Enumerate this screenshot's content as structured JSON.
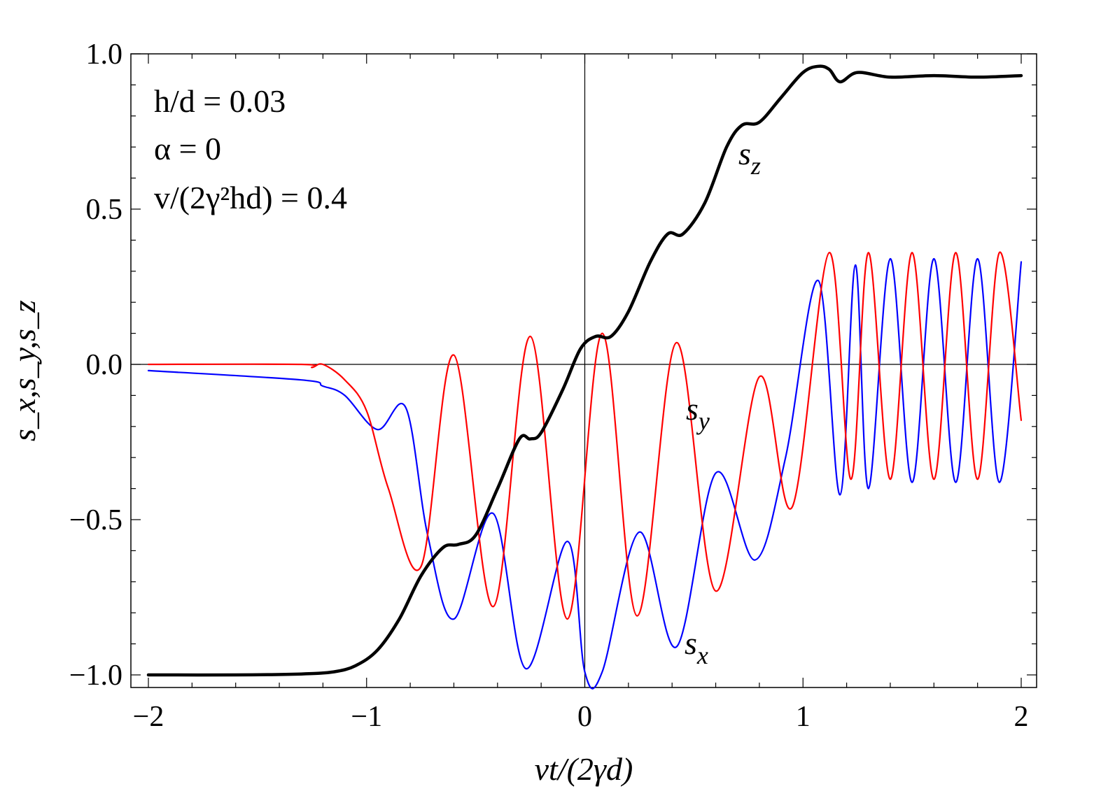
{
  "chart_data": {
    "type": "line",
    "xlabel": "vt/(2γd)",
    "ylabel": "s_x,s_y,s_z",
    "xlim": [
      -2,
      2
    ],
    "ylim": [
      -1.0,
      1.0
    ],
    "x_ticks": [
      -2,
      -1,
      0,
      1,
      2
    ],
    "x_tick_labels": [
      "−2",
      "−1",
      "0",
      "1",
      "2"
    ],
    "y_ticks": [
      -1.0,
      -0.5,
      0.0,
      0.5,
      1.0
    ],
    "y_tick_labels": [
      "−1.0",
      "−0.5",
      "0.0",
      "0.5",
      "1.0"
    ],
    "grid": false,
    "legend": "none (curves labeled inline)",
    "annotations": [
      "h/d = 0.03",
      "α = 0",
      "v/(2γ²hd) = 0.4"
    ],
    "series": [
      {
        "name": "s_z",
        "color": "#000000",
        "x": [
          -2.0,
          -1.6,
          -1.3,
          -1.15,
          -1.05,
          -0.95,
          -0.85,
          -0.75,
          -0.65,
          -0.58,
          -0.5,
          -0.4,
          -0.3,
          -0.25,
          -0.2,
          -0.1,
          -0.02,
          0.05,
          0.12,
          0.2,
          0.3,
          0.38,
          0.45,
          0.55,
          0.65,
          0.72,
          0.8,
          0.9,
          1.0,
          1.07,
          1.12,
          1.17,
          1.25,
          1.4,
          1.6,
          1.8,
          2.0
        ],
        "y": [
          -1.0,
          -1.0,
          -0.997,
          -0.99,
          -0.97,
          -0.92,
          -0.82,
          -0.68,
          -0.59,
          -0.58,
          -0.55,
          -0.4,
          -0.24,
          -0.24,
          -0.22,
          -0.08,
          0.05,
          0.09,
          0.09,
          0.17,
          0.33,
          0.42,
          0.42,
          0.52,
          0.7,
          0.77,
          0.78,
          0.86,
          0.94,
          0.96,
          0.95,
          0.91,
          0.94,
          0.925,
          0.93,
          0.925,
          0.93
        ]
      },
      {
        "name": "s_y",
        "color": "#ff0000",
        "x": [
          -2.0,
          -1.3,
          -1.25,
          -1.2,
          -1.1,
          -1.0,
          -0.9,
          -0.75,
          -0.6,
          -0.42,
          -0.25,
          -0.08,
          0.08,
          0.24,
          0.42,
          0.6,
          0.8,
          0.95,
          1.12,
          1.22,
          1.3,
          1.4,
          1.5,
          1.6,
          1.7,
          1.8,
          1.9,
          2.0
        ],
        "y": [
          0.0,
          0.0,
          -0.01,
          0.0,
          -0.05,
          -0.15,
          -0.4,
          -0.65,
          0.03,
          -0.78,
          0.09,
          -0.82,
          0.1,
          -0.81,
          0.07,
          -0.73,
          -0.04,
          -0.46,
          0.36,
          -0.37,
          0.36,
          -0.37,
          0.36,
          -0.37,
          0.36,
          -0.37,
          0.36,
          -0.18
        ]
      },
      {
        "name": "s_x",
        "color": "#0000ff",
        "x": [
          -2.0,
          -1.3,
          -1.2,
          -1.1,
          -0.95,
          -0.82,
          -0.72,
          -0.6,
          -0.42,
          -0.27,
          -0.08,
          0.0,
          0.08,
          0.25,
          0.42,
          0.6,
          0.78,
          0.92,
          1.07,
          1.17,
          1.24,
          1.3,
          1.4,
          1.5,
          1.6,
          1.7,
          1.8,
          1.9,
          2.0
        ],
        "y": [
          -0.02,
          -0.05,
          -0.07,
          -0.1,
          -0.21,
          -0.14,
          -0.55,
          -0.82,
          -0.48,
          -0.98,
          -0.57,
          -0.99,
          -0.99,
          -0.54,
          -0.91,
          -0.35,
          -0.63,
          -0.3,
          0.27,
          -0.42,
          0.32,
          -0.4,
          0.34,
          -0.38,
          0.34,
          -0.38,
          0.34,
          -0.38,
          0.33
        ]
      }
    ],
    "curve_labels": [
      {
        "series": "s_z",
        "base": "s",
        "sub": "z"
      },
      {
        "series": "s_y",
        "base": "s",
        "sub": "y"
      },
      {
        "series": "s_x",
        "base": "s",
        "sub": "x"
      }
    ]
  }
}
